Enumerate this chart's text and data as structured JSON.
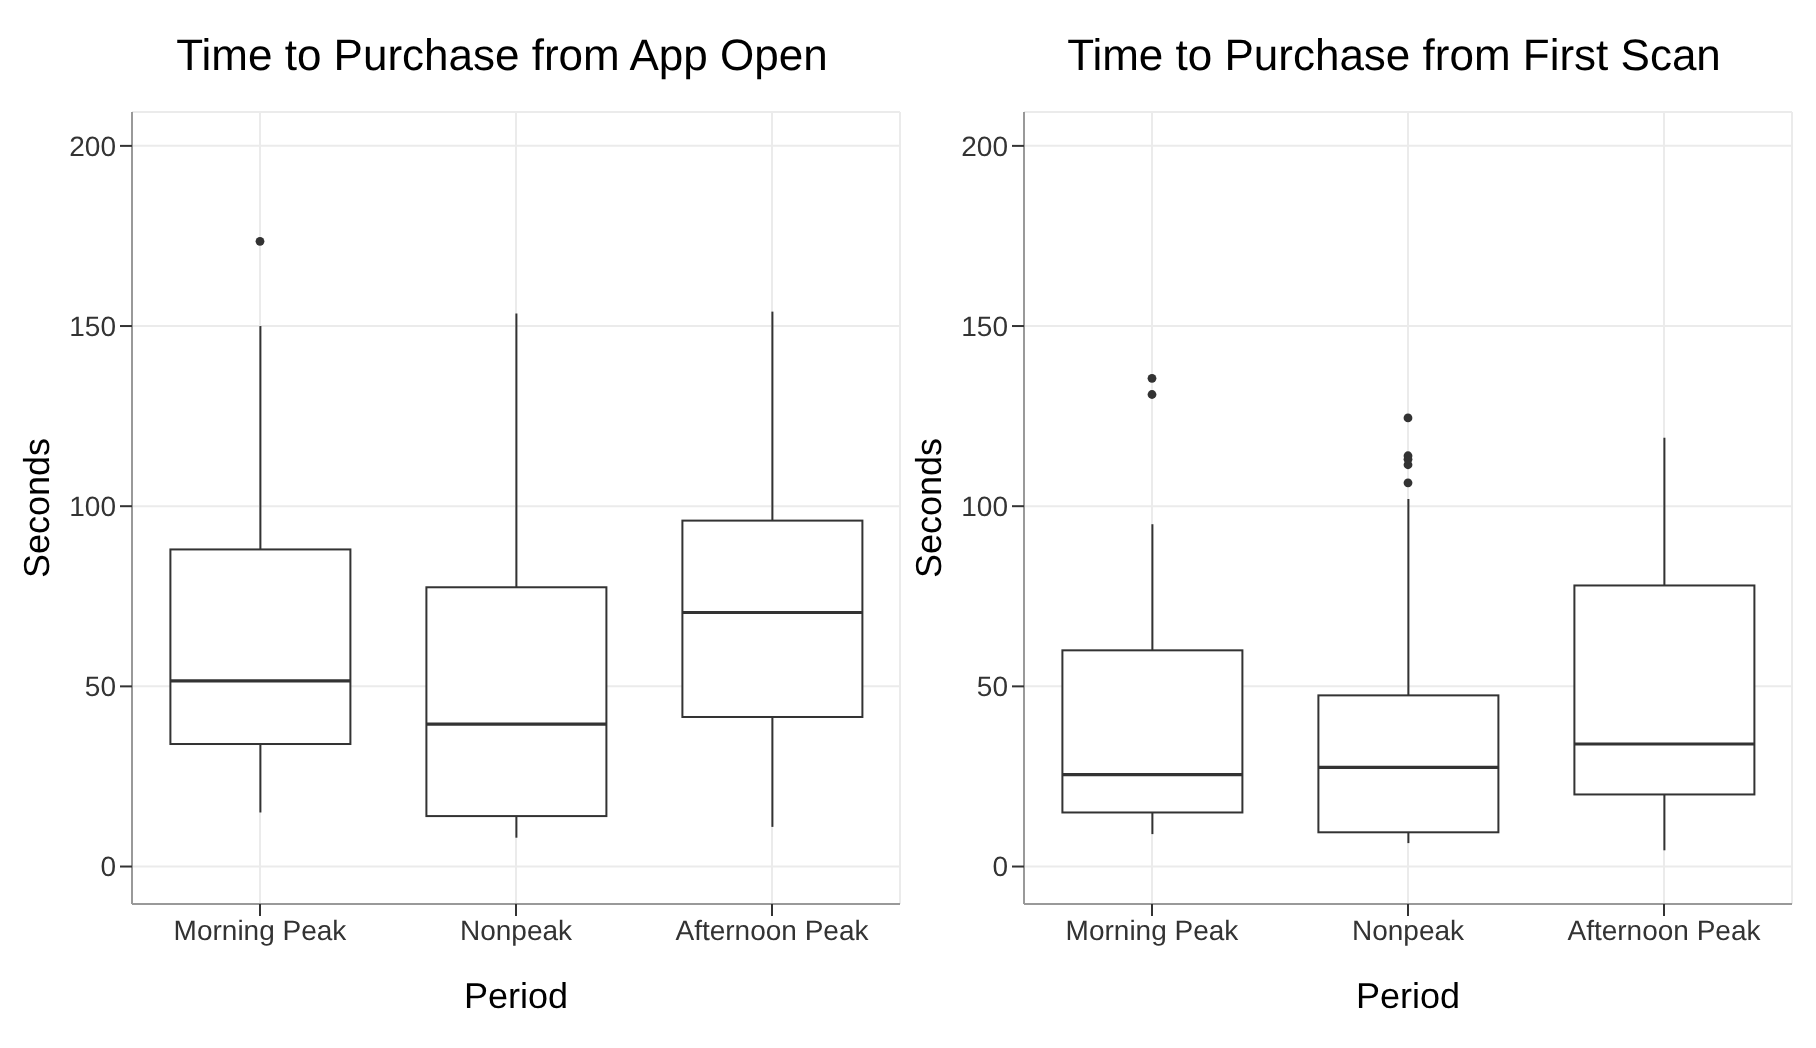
{
  "chart_data": [
    {
      "type": "box",
      "title": "Time to Purchase from App Open",
      "xlabel": "Period",
      "ylabel": "Seconds",
      "categories": [
        "Morning Peak",
        "Nonpeak",
        "Afternoon Peak"
      ],
      "boxes": [
        {
          "low": 15,
          "q1": 34,
          "median": 51.5,
          "q3": 88,
          "high": 150,
          "outliers": [
            173.5
          ]
        },
        {
          "low": 8,
          "q1": 14,
          "median": 39.5,
          "q3": 77.5,
          "high": 153.5
        },
        {
          "low": 11,
          "q1": 41.5,
          "median": 70.5,
          "q3": 96,
          "high": 154
        }
      ],
      "color": "#333333",
      "ylim": [
        -10.4,
        209.4
      ],
      "yticks": [
        0,
        50,
        100,
        150,
        200
      ],
      "grid": true
    },
    {
      "type": "box",
      "title": "Time to Purchase from First Scan",
      "xlabel": "Period",
      "ylabel": "Seconds",
      "categories": [
        "Morning Peak",
        "Nonpeak",
        "Afternoon Peak"
      ],
      "boxes": [
        {
          "low": 9,
          "q1": 15,
          "median": 25.5,
          "q3": 60,
          "high": 95,
          "outliers": [
            131,
            135.5
          ]
        },
        {
          "low": 6.5,
          "q1": 9.5,
          "median": 27.5,
          "q3": 47.5,
          "high": 102,
          "outliers": [
            106.5,
            111.5,
            113,
            114,
            124.5
          ]
        },
        {
          "low": 4.5,
          "q1": 20,
          "median": 34,
          "q3": 78,
          "high": 119
        }
      ],
      "color": "#333333",
      "ylim": [
        -10.4,
        209.4
      ],
      "yticks": [
        0,
        50,
        100,
        150,
        200
      ],
      "grid": true
    }
  ]
}
